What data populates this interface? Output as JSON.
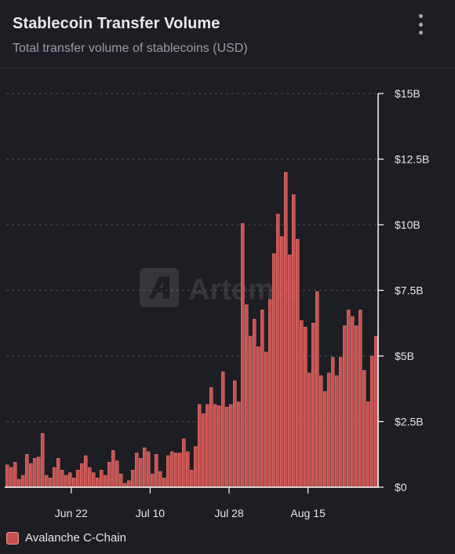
{
  "header": {
    "title": "Stablecoin Transfer Volume",
    "subtitle": "Total transfer volume of stablecoins (USD)",
    "menu_icon": "kebab-menu-icon"
  },
  "watermark": {
    "text": "Artemis",
    "icon": "artemis-logo-icon"
  },
  "colors": {
    "bar": "#c9504e",
    "bar_edge": "#e07a76",
    "grid": "#4a4a52",
    "axis": "#ffffff",
    "text": "#e6e6ea"
  },
  "chart_data": {
    "type": "bar",
    "title": "Stablecoin Transfer Volume",
    "subtitle": "Total transfer volume of stablecoins (USD)",
    "x_start": "2023-06-07",
    "x_end": "2023-08-31",
    "x_ticks": [
      {
        "date": "2023-06-22",
        "label": "Jun 22"
      },
      {
        "date": "2023-07-10",
        "label": "Jul 10"
      },
      {
        "date": "2023-07-28",
        "label": "Jul 28"
      },
      {
        "date": "2023-08-15",
        "label": "Aug 15"
      }
    ],
    "y_ticks": [
      {
        "value": 0,
        "label": "$0"
      },
      {
        "value": 2.5,
        "label": "$2.5B"
      },
      {
        "value": 5,
        "label": "$5B"
      },
      {
        "value": 7.5,
        "label": "$7.5B"
      },
      {
        "value": 10,
        "label": "$10B"
      },
      {
        "value": 12.5,
        "label": "$12.5B"
      },
      {
        "value": 15,
        "label": "$15B"
      }
    ],
    "ylim": [
      0,
      15
    ],
    "y_unit": "billion USD",
    "y_axis_position": "right",
    "grid": true,
    "legend_position": "bottom-left",
    "series": [
      {
        "name": "Avalanche C-Chain",
        "values": [
          0.85,
          0.75,
          0.95,
          0.3,
          0.45,
          1.25,
          0.9,
          1.1,
          1.15,
          2.05,
          0.45,
          0.35,
          0.75,
          1.1,
          0.65,
          0.45,
          0.55,
          0.35,
          0.65,
          0.9,
          1.2,
          0.75,
          0.55,
          0.35,
          0.65,
          0.45,
          0.95,
          1.4,
          1.0,
          0.5,
          0.15,
          0.25,
          0.65,
          1.3,
          1.1,
          1.5,
          1.35,
          0.5,
          1.25,
          0.6,
          0.35,
          1.2,
          1.35,
          1.3,
          1.3,
          1.85,
          1.35,
          0.65,
          1.55,
          3.15,
          2.8,
          3.15,
          3.8,
          3.15,
          3.1,
          4.4,
          3.05,
          3.15,
          4.05,
          3.25,
          10.05,
          6.95,
          5.75,
          6.4,
          5.35,
          6.75,
          5.15,
          7.15,
          8.9,
          10.4,
          9.55,
          12.0,
          8.85,
          11.15,
          9.45,
          6.35,
          6.1,
          4.35,
          6.25,
          7.45,
          4.25,
          3.65,
          4.35,
          4.95,
          4.25,
          4.95,
          6.15,
          6.75,
          6.5,
          6.15,
          6.75,
          4.45,
          3.25,
          5.0,
          5.75
        ]
      }
    ]
  },
  "legend": {
    "items": [
      {
        "label": "Avalanche C-Chain",
        "color": "#c9504e"
      }
    ]
  }
}
